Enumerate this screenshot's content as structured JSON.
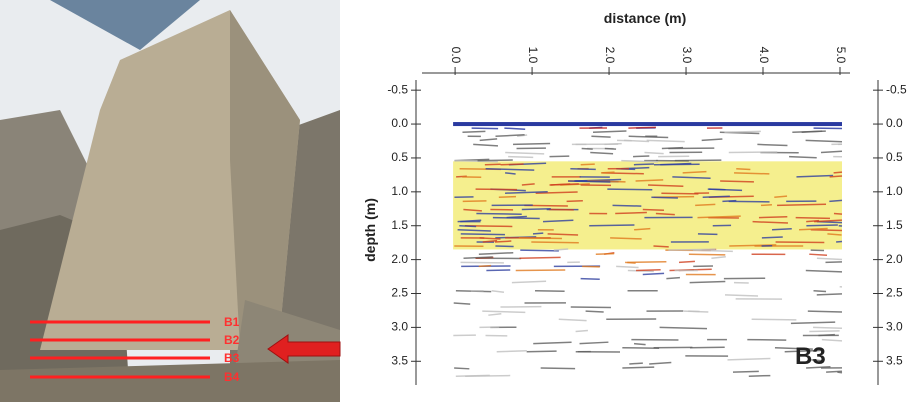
{
  "photo": {
    "line_labels": [
      "B1",
      "B2",
      "B3",
      "B4"
    ]
  },
  "chart_data": {
    "type": "radargram",
    "xlabel": "distance (m)",
    "ylabel": "depth (m)",
    "annotation": "B3",
    "xlim": [
      -0.3,
      5.13
    ],
    "ylim": [
      -0.65,
      3.85
    ],
    "xticks": [
      {
        "value": 0,
        "label": "0.0"
      },
      {
        "value": 1,
        "label": "1.0"
      },
      {
        "value": 2,
        "label": "2.0"
      },
      {
        "value": 3,
        "label": "3.0"
      },
      {
        "value": 4,
        "label": "4.0"
      },
      {
        "value": 5,
        "label": "5.0"
      }
    ],
    "yticks": [
      -0.5,
      {
        "value": 0,
        "label": "0.0"
      },
      0.5,
      {
        "value": 1,
        "label": "1.0"
      },
      1.5,
      {
        "value": 2,
        "label": "2.0"
      },
      2.5,
      {
        "value": 3,
        "label": "3.0"
      },
      3.5
    ]
  }
}
